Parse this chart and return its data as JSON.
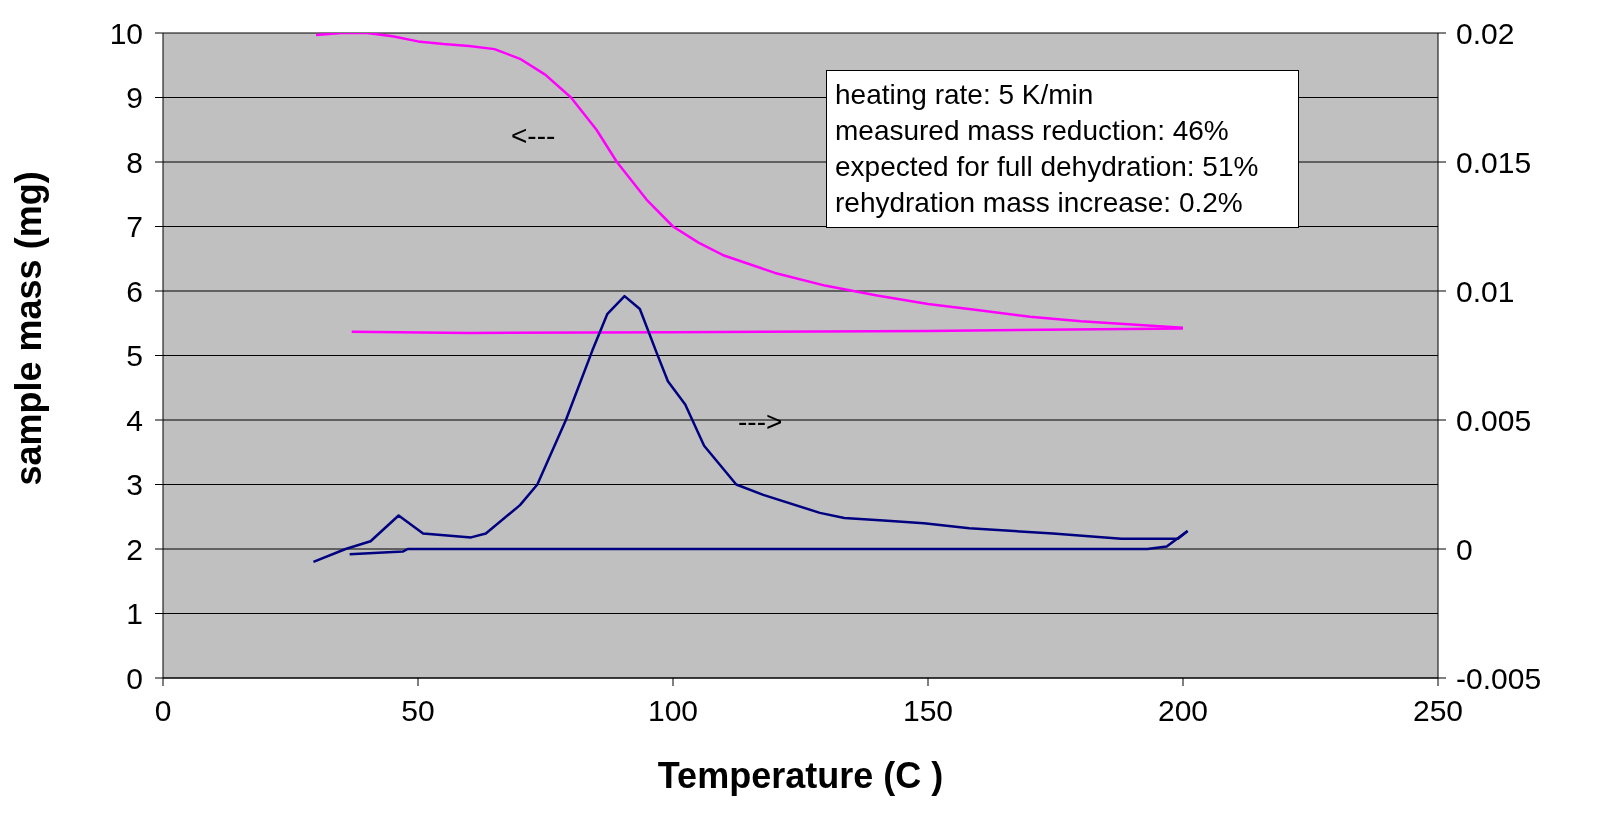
{
  "chart_data": {
    "type": "line",
    "xlabel": "Temperature (C )",
    "ylabel": "sample mass (mg)",
    "xlim": [
      0,
      250
    ],
    "xticks": [
      0,
      50,
      100,
      150,
      200,
      250
    ],
    "ylim": [
      0,
      10
    ],
    "yticks": [
      0,
      1,
      2,
      3,
      4,
      5,
      6,
      7,
      8,
      9,
      10
    ],
    "y2lim": [
      -0.005,
      0.02
    ],
    "y2ticks": [
      -0.005,
      0,
      0.005,
      0.01,
      0.015,
      0.02
    ],
    "grid": "y",
    "legend": false,
    "marker": "none",
    "line_style": "solid",
    "series": [
      {
        "color": "#ff00ff",
        "x": [
          30,
          35,
          40,
          45,
          50,
          55,
          60,
          65,
          70,
          75,
          80,
          85,
          89,
          95,
          100,
          105,
          110,
          120,
          130,
          140,
          150,
          160,
          170,
          180,
          190,
          200
        ],
        "values": [
          9.97,
          10.0,
          10.0,
          9.95,
          9.87,
          9.83,
          9.8,
          9.75,
          9.6,
          9.35,
          9.0,
          8.5,
          8.0,
          7.4,
          7.0,
          6.75,
          6.55,
          6.28,
          6.08,
          5.93,
          5.8,
          5.7,
          5.6,
          5.53,
          5.48,
          5.43
        ]
      },
      {
        "color": "#ff00ff",
        "x": [
          200,
          150,
          100,
          60,
          37
        ],
        "values": [
          5.42,
          5.38,
          5.36,
          5.35,
          5.37
        ]
      },
      {
        "color": "#000080",
        "axis": "y2",
        "x": [
          29.5,
          35.8,
          40.7,
          46.2,
          51,
          60.4,
          63.3,
          70,
          73.4,
          79,
          84.2,
          87.1,
          90.5,
          93.5,
          96.8,
          99,
          102.4,
          106.1,
          112.4,
          117.7,
          128.8,
          133.6,
          141.3,
          149.2,
          158.1,
          174.5,
          187.9,
          199,
          200.9
        ],
        "values": [
          -0.0005,
          0,
          0.0003,
          0.0013,
          0.0006,
          0.00045,
          0.0006,
          0.0017,
          0.0025,
          0.005,
          0.0077,
          0.0091,
          0.0098,
          0.0093,
          0.0076,
          0.0065,
          0.0056,
          0.004,
          0.0025,
          0.0021,
          0.0014,
          0.0012,
          0.0011,
          0.001,
          0.0008,
          0.0006,
          0.0004,
          0.0004,
          0.0007
        ]
      },
      {
        "color": "#000080",
        "axis": "y2",
        "x": [
          200.9,
          196.8,
          193,
          150,
          100,
          48,
          47,
          36.6
        ],
        "values": [
          0.0007,
          0.0001,
          0,
          0,
          0,
          0,
          -0.0001,
          -0.0002
        ]
      }
    ],
    "annotations": [
      "heating rate: 5 K/min",
      "measured mass reduction: 46%",
      "expected for full dehydration: 51%",
      "rehydration mass increase: 0.2%",
      "<---",
      "--->"
    ]
  }
}
